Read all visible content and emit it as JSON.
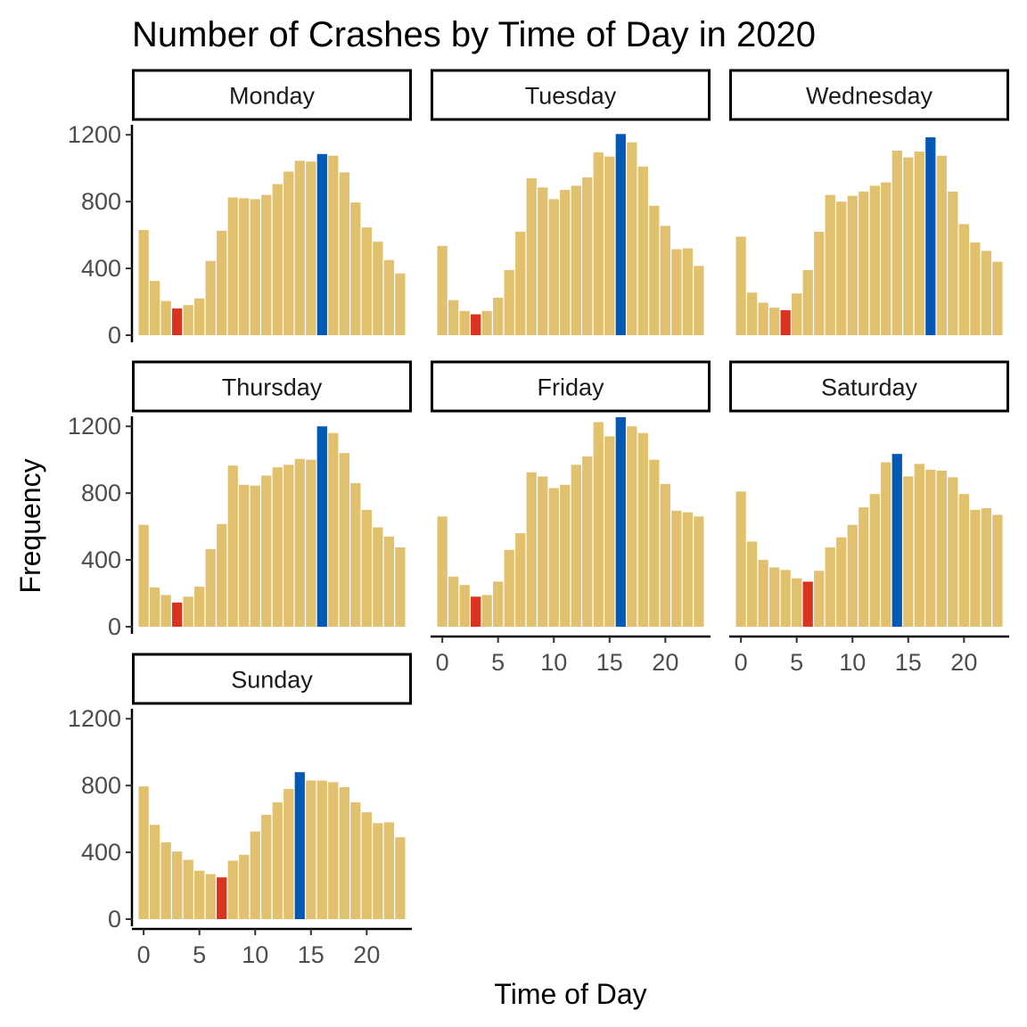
{
  "chart_data": {
    "type": "bar",
    "title": "Number of Crashes by Time of Day in 2020",
    "xlabel": "Time of Day",
    "ylabel": "Frequency",
    "x": [
      0,
      1,
      2,
      3,
      4,
      5,
      6,
      7,
      8,
      9,
      10,
      11,
      12,
      13,
      14,
      15,
      16,
      17,
      18,
      19,
      20,
      21,
      22,
      23
    ],
    "x_ticks": [
      0,
      5,
      10,
      15,
      20
    ],
    "y_ticks": [
      0,
      400,
      800,
      1200
    ],
    "ylim": [
      0,
      1260
    ],
    "colors": {
      "default": "#E1C16E",
      "min": "#DC3220",
      "max": "#005AB5"
    },
    "panels": [
      {
        "day": "Monday",
        "values": [
          630,
          325,
          205,
          160,
          180,
          220,
          445,
          625,
          825,
          820,
          815,
          840,
          905,
          980,
          1045,
          1040,
          1085,
          1075,
          975,
          795,
          645,
          560,
          450,
          370
        ]
      },
      {
        "day": "Tuesday",
        "values": [
          535,
          210,
          145,
          125,
          145,
          225,
          390,
          620,
          940,
          885,
          815,
          870,
          895,
          945,
          1095,
          1070,
          1205,
          1155,
          1010,
          775,
          655,
          515,
          520,
          415
        ]
      },
      {
        "day": "Wednesday",
        "values": [
          590,
          255,
          195,
          165,
          150,
          250,
          390,
          620,
          840,
          800,
          835,
          860,
          895,
          915,
          1105,
          1065,
          1100,
          1185,
          1075,
          860,
          665,
          555,
          505,
          440
        ]
      },
      {
        "day": "Thursday",
        "values": [
          610,
          235,
          190,
          145,
          180,
          240,
          465,
          615,
          965,
          850,
          845,
          905,
          955,
          970,
          1005,
          1000,
          1200,
          1160,
          1040,
          860,
          700,
          595,
          540,
          475
        ]
      },
      {
        "day": "Friday",
        "values": [
          660,
          300,
          250,
          180,
          190,
          270,
          460,
          560,
          925,
          900,
          830,
          850,
          970,
          1020,
          1225,
          1140,
          1255,
          1200,
          1160,
          1000,
          855,
          695,
          685,
          660
        ]
      },
      {
        "day": "Saturday",
        "values": [
          810,
          510,
          400,
          355,
          340,
          290,
          270,
          335,
          475,
          535,
          610,
          715,
          795,
          985,
          1035,
          900,
          975,
          940,
          935,
          895,
          795,
          700,
          710,
          670
        ]
      },
      {
        "day": "Sunday",
        "values": [
          795,
          565,
          460,
          405,
          355,
          290,
          270,
          250,
          350,
          385,
          525,
          625,
          700,
          780,
          880,
          830,
          830,
          820,
          790,
          700,
          640,
          575,
          580,
          490
        ]
      }
    ]
  }
}
